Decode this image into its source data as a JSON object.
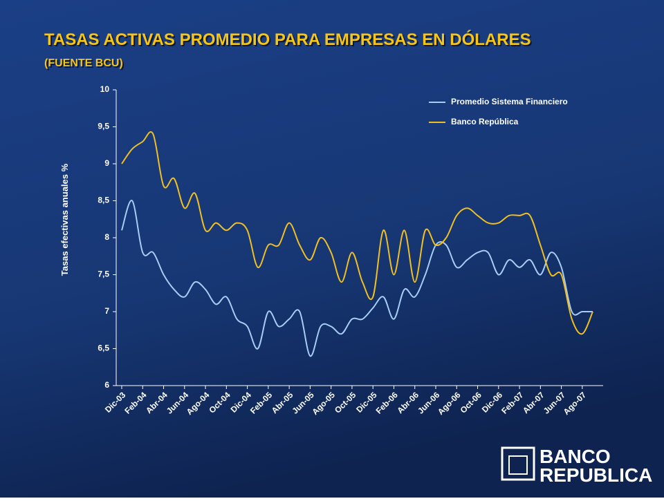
{
  "chart_data": {
    "type": "line",
    "title": "TASAS ACTIVAS PROMEDIO PARA EMPRESAS EN DÓLARES",
    "subtitle": "(FUENTE BCU)",
    "y_label": "Tasas efectivas anuales %",
    "categories": [
      "Dic-03",
      null,
      "Feb-04",
      null,
      "Abr-04",
      null,
      "Jun-04",
      null,
      "Ago-04",
      null,
      "Oct-04",
      null,
      "Dic-04",
      null,
      "Feb-05",
      null,
      "Abr-05",
      null,
      "Jun-05",
      null,
      "Ago-05",
      null,
      "Oct-05",
      null,
      "Dic-05",
      null,
      "Feb-06",
      null,
      "Abr-06",
      null,
      "Jun-06",
      null,
      "Ago-06",
      null,
      "Oct-06",
      null,
      "Dic-06",
      null,
      "Feb-07",
      null,
      "Abr-07",
      null,
      "Jun-07",
      null,
      "Ago-07",
      null
    ],
    "series": [
      {
        "name": "Promedio Sistema Financiero",
        "color": "#a8cdf5",
        "values": [
          8.1,
          8.5,
          7.8,
          7.8,
          7.5,
          7.3,
          7.2,
          7.4,
          7.3,
          7.1,
          7.2,
          6.9,
          6.8,
          6.5,
          7.0,
          6.8,
          6.9,
          7.0,
          6.4,
          6.8,
          6.8,
          6.7,
          6.9,
          6.9,
          7.05,
          7.2,
          6.9,
          7.3,
          7.2,
          7.5,
          7.9,
          7.9,
          7.6,
          7.7,
          7.8,
          7.8,
          7.5,
          7.7,
          7.6,
          7.7,
          7.5,
          7.8,
          7.6,
          7.0,
          7.0,
          7.0
        ]
      },
      {
        "name": "Banco República",
        "color": "#f0c020",
        "values": [
          9.0,
          9.2,
          9.3,
          9.4,
          8.7,
          8.8,
          8.4,
          8.6,
          8.1,
          8.2,
          8.1,
          8.2,
          8.1,
          7.6,
          7.9,
          7.9,
          8.2,
          7.9,
          7.7,
          8.0,
          7.8,
          7.4,
          7.8,
          7.4,
          7.2,
          8.1,
          7.5,
          8.1,
          7.4,
          8.1,
          7.9,
          8.0,
          8.3,
          8.4,
          8.3,
          8.2,
          8.2,
          8.3,
          8.3,
          8.3,
          7.9,
          7.5,
          7.5,
          6.9,
          6.7,
          7.0
        ]
      }
    ],
    "ylim": [
      6,
      10
    ],
    "yticks": [
      6,
      {
        "value": 6.5,
        "label": "6,5"
      },
      7,
      {
        "value": 7.5,
        "label": "7,5"
      },
      8,
      {
        "value": 8.5,
        "label": "8,5"
      },
      9,
      {
        "value": 9.5,
        "label": "9,5"
      },
      10
    ],
    "legend": "top-right"
  },
  "logo": {
    "line1": "BANCO",
    "line2": "REPUBLICA"
  }
}
